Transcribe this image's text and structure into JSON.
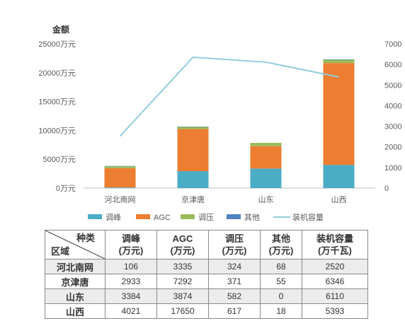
{
  "chart_data": {
    "type": "bar",
    "stacked": true,
    "ylabel": "金额",
    "categories": [
      "河北南网",
      "京津唐",
      "山东",
      "山西"
    ],
    "y_ticks": [
      "0万元",
      "5000万元",
      "10000万元",
      "15000万元",
      "20000万元",
      "25000万元"
    ],
    "ylim": [
      0,
      25000
    ],
    "y2_ticks": [
      "0",
      "1000",
      "2000",
      "3000",
      "4000",
      "5000",
      "6000",
      "7000"
    ],
    "y2lim": [
      0,
      7000
    ],
    "series": [
      {
        "name": "调峰",
        "values": [
          106,
          2933,
          3384,
          4021
        ],
        "color": "#4bacc6"
      },
      {
        "name": "AGC",
        "values": [
          3335,
          7292,
          3874,
          17650
        ],
        "color": "#ed7d31"
      },
      {
        "name": "调压",
        "values": [
          324,
          371,
          582,
          617
        ],
        "color": "#9bbb59"
      },
      {
        "name": "其他",
        "values": [
          68,
          55,
          0,
          18
        ],
        "color": "#4f81bd"
      }
    ],
    "line_series": {
      "name": "装机容量",
      "values": [
        2520,
        6346,
        6110,
        5393
      ],
      "color": "#92cddc",
      "axis": "secondary"
    },
    "legend_position": "bottom",
    "grid": false
  },
  "table": {
    "corner_top": "种类",
    "corner_bottom": "区域",
    "headers": [
      {
        "l1": "调峰",
        "l2": "(万元)"
      },
      {
        "l1": "AGC",
        "l2": "(万元)"
      },
      {
        "l1": "调压",
        "l2": "(万元)"
      },
      {
        "l1": "其他",
        "l2": "(万元)"
      },
      {
        "l1": "装机容量",
        "l2": "(万千瓦)"
      }
    ],
    "rows": [
      {
        "region": "河北南网",
        "cells": [
          "106",
          "3335",
          "324",
          "68",
          "2520"
        ]
      },
      {
        "region": "京津唐",
        "cells": [
          "2933",
          "7292",
          "371",
          "55",
          "6346"
        ]
      },
      {
        "region": "山东",
        "cells": [
          "3384",
          "3874",
          "582",
          "0",
          "6110"
        ]
      },
      {
        "region": "山西",
        "cells": [
          "4021",
          "17650",
          "617",
          "18",
          "5393"
        ]
      }
    ]
  }
}
